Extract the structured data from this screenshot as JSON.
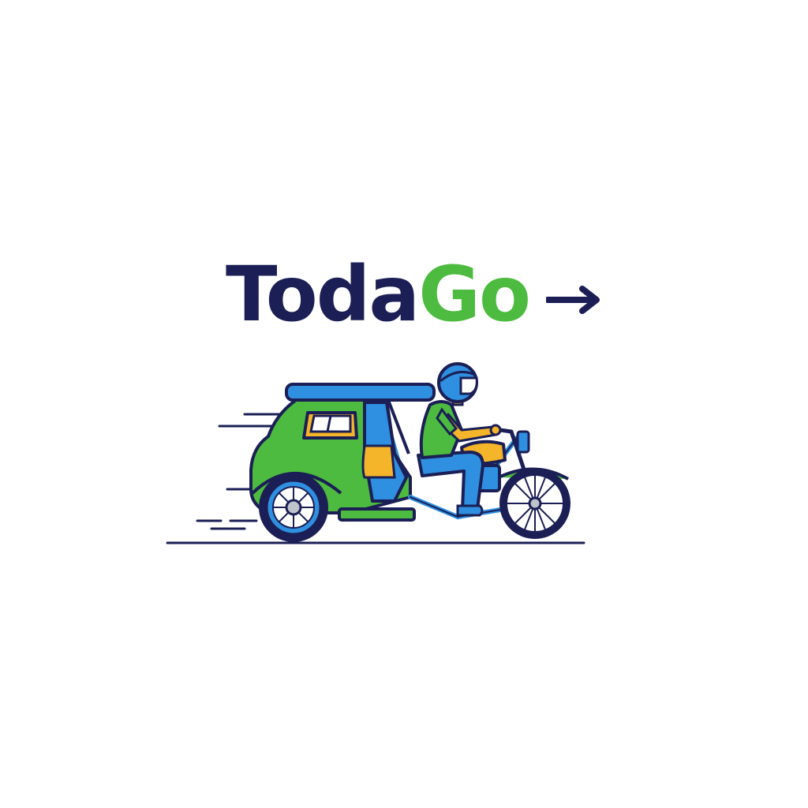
{
  "logo": {
    "wordmark_part_1": "Toda",
    "wordmark_part_2": "Go",
    "arrow": "arrow-right-icon"
  },
  "illustration": {
    "subject": "tricycle-with-rider-icon"
  },
  "colors": {
    "navy": "#1b1f55",
    "green": "#4cbb3f",
    "blue": "#2f8fe0",
    "yellow": "#f4b52a",
    "background": "#ffffff"
  }
}
